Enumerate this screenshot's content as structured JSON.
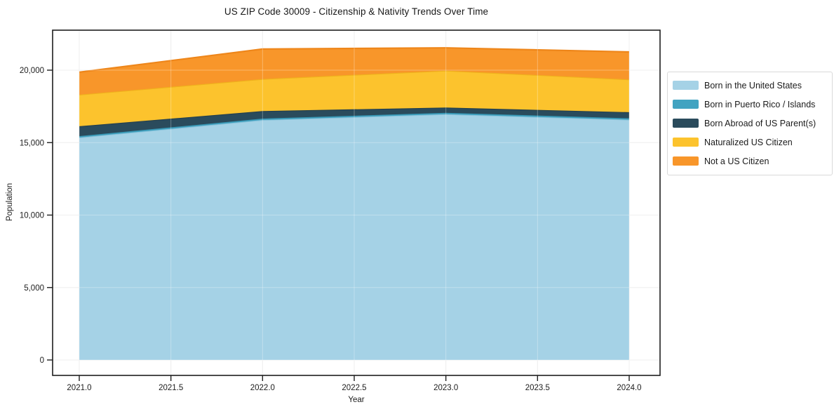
{
  "title": "US ZIP Code 30009 - Citizenship & Nativity Trends Over Time",
  "chart_data": {
    "type": "area",
    "stacked": true,
    "title": "US ZIP Code 30009 - Citizenship & Nativity Trends Over Time",
    "xlabel": "Year",
    "ylabel": "Population",
    "x": [
      2021,
      2022,
      2023,
      2024
    ],
    "xlim": [
      2020.85,
      2024.17
    ],
    "ylim": [
      -1065,
      22760
    ],
    "xticks": [
      2021.0,
      2021.5,
      2022.0,
      2022.5,
      2023.0,
      2023.5,
      2024.0
    ],
    "xtick_labels": [
      "2021.0",
      "2021.5",
      "2022.0",
      "2022.5",
      "2023.0",
      "2023.5",
      "2024.0"
    ],
    "yticks": [
      0,
      5000,
      10000,
      15000,
      20000
    ],
    "ytick_labels": [
      "0",
      "5,000",
      "10,000",
      "15,000",
      "20,000"
    ],
    "grid": true,
    "legend_position": "right",
    "series": [
      {
        "name": "Born in the United States",
        "color": "#a5d2e6",
        "edge": "#8cc4dc",
        "values": [
          15350,
          16560,
          16960,
          16580
        ]
      },
      {
        "name": "Born in Puerto Rico / Islands",
        "color": "#41a3c1",
        "edge": "#3795b2",
        "values": [
          100,
          100,
          100,
          100
        ]
      },
      {
        "name": "Born Abroad of US Parent(s)",
        "color": "#2a4b5c",
        "edge": "#233f4e",
        "values": [
          680,
          520,
          360,
          420
        ]
      },
      {
        "name": "Naturalized US Citizen",
        "color": "#fcc32d",
        "edge": "#efb11c",
        "values": [
          2180,
          2210,
          2550,
          2260
        ]
      },
      {
        "name": "Not a US Citizen",
        "color": "#f8962a",
        "edge": "#ee861a",
        "values": [
          1550,
          2070,
          1570,
          1900
        ]
      }
    ],
    "totals": [
      19860,
      21460,
      21540,
      21260
    ]
  }
}
